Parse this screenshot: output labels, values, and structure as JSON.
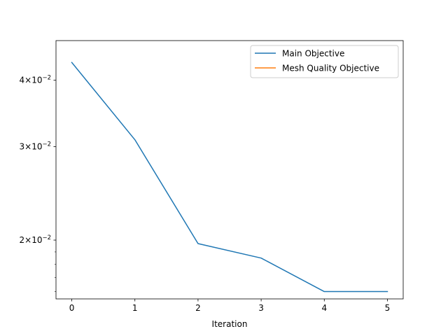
{
  "chart_data": {
    "type": "line",
    "xlabel": "Iteration",
    "ylabel": "",
    "title": "",
    "y_scale": "log",
    "xlim": [
      -0.25,
      5.25
    ],
    "ylim": [
      0.0155,
      0.0475
    ],
    "x_ticks": [
      0,
      1,
      2,
      3,
      4,
      5
    ],
    "x_tick_labels": [
      "0",
      "1",
      "2",
      "3",
      "4",
      "5"
    ],
    "y_ticks": [
      0.02,
      0.03,
      0.04
    ],
    "y_tick_labels": [
      {
        "base": "2×10",
        "exp": "−2"
      },
      {
        "base": "3×10",
        "exp": "−2"
      },
      {
        "base": "4×10",
        "exp": "−2"
      }
    ],
    "grid": false,
    "legend_position": "top-right",
    "series": [
      {
        "name": "Main Objective",
        "color": "#1f77b4",
        "x": [
          0,
          1,
          2,
          3,
          4,
          5
        ],
        "y": [
          0.0432,
          0.0309,
          0.0197,
          0.0185,
          0.016,
          0.016
        ]
      },
      {
        "name": "Mesh Quality Objective",
        "color": "#ff7f0e",
        "x": [],
        "y": []
      }
    ]
  }
}
